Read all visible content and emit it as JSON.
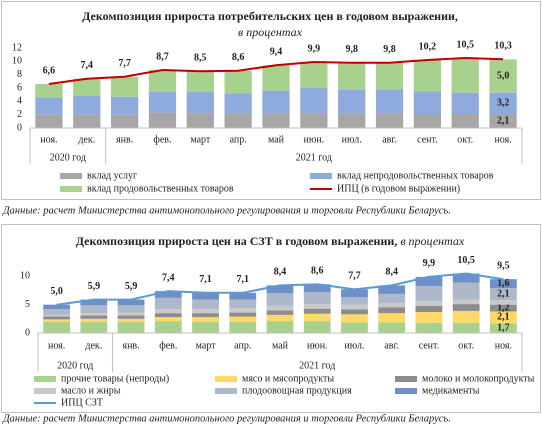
{
  "chart_data": [
    {
      "type": "bar",
      "stacked": true,
      "title": "Декомпозиция прироста потребительских цен в годовом выражении,",
      "subtitle": "в процентах",
      "categories": [
        "ноя.",
        "дек.",
        "янв.",
        "фев.",
        "март",
        "апр.",
        "май",
        "июн.",
        "июл.",
        "авг.",
        "сент.",
        "окт.",
        "ноя."
      ],
      "groups": [
        {
          "label": "2020 год",
          "categories": 2
        },
        {
          "label": "2021 год",
          "categories": 11
        }
      ],
      "ylim": [
        0,
        12
      ],
      "yticks": [
        0,
        2,
        4,
        6,
        8,
        10,
        12
      ],
      "grid": false,
      "series": [
        {
          "name": "вклад услуг",
          "type": "bar",
          "color": "#a6a6a6",
          "values": [
            2.0,
            2.0,
            2.0,
            2.3,
            2.2,
            2.2,
            2.2,
            2.2,
            2.2,
            2.2,
            2.1,
            2.1,
            2.1
          ],
          "value_labels": [
            null,
            null,
            null,
            null,
            null,
            null,
            null,
            null,
            null,
            null,
            null,
            null,
            "2,1"
          ]
        },
        {
          "name": "вклад непродовольственных товаров",
          "type": "bar",
          "color": "#8faadc",
          "values": [
            2.6,
            2.9,
            2.7,
            3.1,
            3.2,
            3.0,
            3.4,
            3.8,
            3.5,
            3.6,
            3.4,
            3.2,
            3.2
          ],
          "value_labels": [
            null,
            null,
            null,
            null,
            null,
            null,
            null,
            null,
            null,
            null,
            null,
            null,
            "3,2"
          ]
        },
        {
          "name": "вклад продовольственных товаров",
          "type": "bar",
          "color": "#a9d18e",
          "values": [
            2.0,
            2.5,
            3.0,
            3.3,
            3.1,
            3.4,
            3.8,
            3.9,
            4.1,
            4.0,
            4.7,
            5.2,
            5.0
          ],
          "value_labels": [
            null,
            null,
            null,
            null,
            null,
            null,
            null,
            null,
            null,
            null,
            null,
            null,
            "5,0"
          ]
        },
        {
          "name": "ИПЦ (в годовом выражении)",
          "type": "line",
          "color": "#c00000",
          "values": [
            6.6,
            7.4,
            7.7,
            8.7,
            8.5,
            8.6,
            9.4,
            9.9,
            9.8,
            9.8,
            10.2,
            10.5,
            10.3
          ],
          "value_labels": [
            "6,6",
            "7,4",
            "7,7",
            "8,7",
            "8,5",
            "8,6",
            "9,4",
            "9,9",
            "9,8",
            "9,8",
            "10,2",
            "10,5",
            "10,3"
          ]
        }
      ],
      "source": "Данные: расчет Министерства антимонопольного регулирования и торговли Республики Беларусь."
    },
    {
      "type": "bar",
      "stacked": true,
      "title": "Декомпозиция прироста цен на СЗТ в годовом выражении,",
      "subtitle": "в процентах",
      "categories": [
        "ноя.",
        "дек.",
        "янв.",
        "фев.",
        "март",
        "апр.",
        "май",
        "июн.",
        "июл.",
        "авг.",
        "сент.",
        "окт.",
        "ноя."
      ],
      "groups": [
        {
          "label": "2020 год",
          "categories": 2
        },
        {
          "label": "2021 год",
          "categories": 11
        }
      ],
      "ylim": [
        0,
        12
      ],
      "yticks": [
        0,
        5,
        10
      ],
      "grid": false,
      "series": [
        {
          "name": "прочие товары (непроды)",
          "type": "bar",
          "color": "#a9d18e",
          "values": [
            2.0,
            2.0,
            2.0,
            2.1,
            2.0,
            2.0,
            2.1,
            2.1,
            1.9,
            1.9,
            1.8,
            1.8,
            1.7
          ],
          "value_labels": [
            null,
            null,
            null,
            null,
            null,
            null,
            null,
            null,
            null,
            null,
            null,
            null,
            "1,7"
          ]
        },
        {
          "name": "мясо и мясопродукты",
          "type": "bar",
          "color": "#ffd966",
          "values": [
            0.4,
            0.5,
            0.5,
            0.7,
            0.8,
            0.9,
            1.1,
            1.3,
            1.4,
            1.6,
            1.9,
            2.1,
            2.1
          ],
          "value_labels": [
            null,
            null,
            null,
            null,
            null,
            null,
            null,
            null,
            null,
            null,
            null,
            null,
            "2,1"
          ]
        },
        {
          "name": "молоко и молокопродукты",
          "type": "bar",
          "color": "#8c8c8c",
          "values": [
            0.5,
            0.6,
            0.6,
            0.7,
            0.7,
            0.7,
            0.8,
            0.9,
            0.9,
            1.0,
            1.1,
            1.2,
            1.2
          ],
          "value_labels": [
            null,
            null,
            null,
            null,
            null,
            null,
            null,
            null,
            null,
            null,
            null,
            null,
            "1,2"
          ]
        },
        {
          "name": "масло и жиры",
          "type": "bar",
          "color": "#c9c9c9",
          "values": [
            0.3,
            0.4,
            0.5,
            0.7,
            0.7,
            0.8,
            0.8,
            0.8,
            0.8,
            0.8,
            0.8,
            0.8,
            0.8
          ]
        },
        {
          "name": "плодоовощная продукция",
          "type": "bar",
          "color": "#adb9ca",
          "values": [
            1.0,
            1.4,
            1.3,
            2.0,
            1.7,
            1.5,
            2.2,
            2.1,
            1.3,
            1.6,
            2.7,
            3.0,
            2.1
          ],
          "value_labels": [
            null,
            null,
            null,
            null,
            null,
            null,
            null,
            null,
            null,
            null,
            null,
            null,
            "2,1"
          ]
        },
        {
          "name": "медикаменты",
          "type": "bar",
          "color": "#6f8fc9",
          "values": [
            0.8,
            1.0,
            1.0,
            1.2,
            1.2,
            1.2,
            1.4,
            1.4,
            1.4,
            1.5,
            1.6,
            1.6,
            1.6
          ],
          "value_labels": [
            null,
            null,
            null,
            null,
            null,
            null,
            null,
            null,
            null,
            null,
            null,
            null,
            "1,6"
          ]
        },
        {
          "name": "ИПЦ СЗТ",
          "type": "line",
          "color": "#5b9bd5",
          "values": [
            5.0,
            5.9,
            5.9,
            7.4,
            7.1,
            7.1,
            8.4,
            8.6,
            7.7,
            8.4,
            9.9,
            10.5,
            9.5
          ],
          "value_labels": [
            "5,0",
            "5,9",
            "5,9",
            "7,4",
            "7,1",
            "7,1",
            "8,4",
            "8,6",
            "7,7",
            "8,4",
            "9,9",
            "10,5",
            "9,5"
          ]
        }
      ],
      "source": "Данные: расчет Министерства антимонопольного регулирования и торговли Республики Беларусь."
    }
  ]
}
